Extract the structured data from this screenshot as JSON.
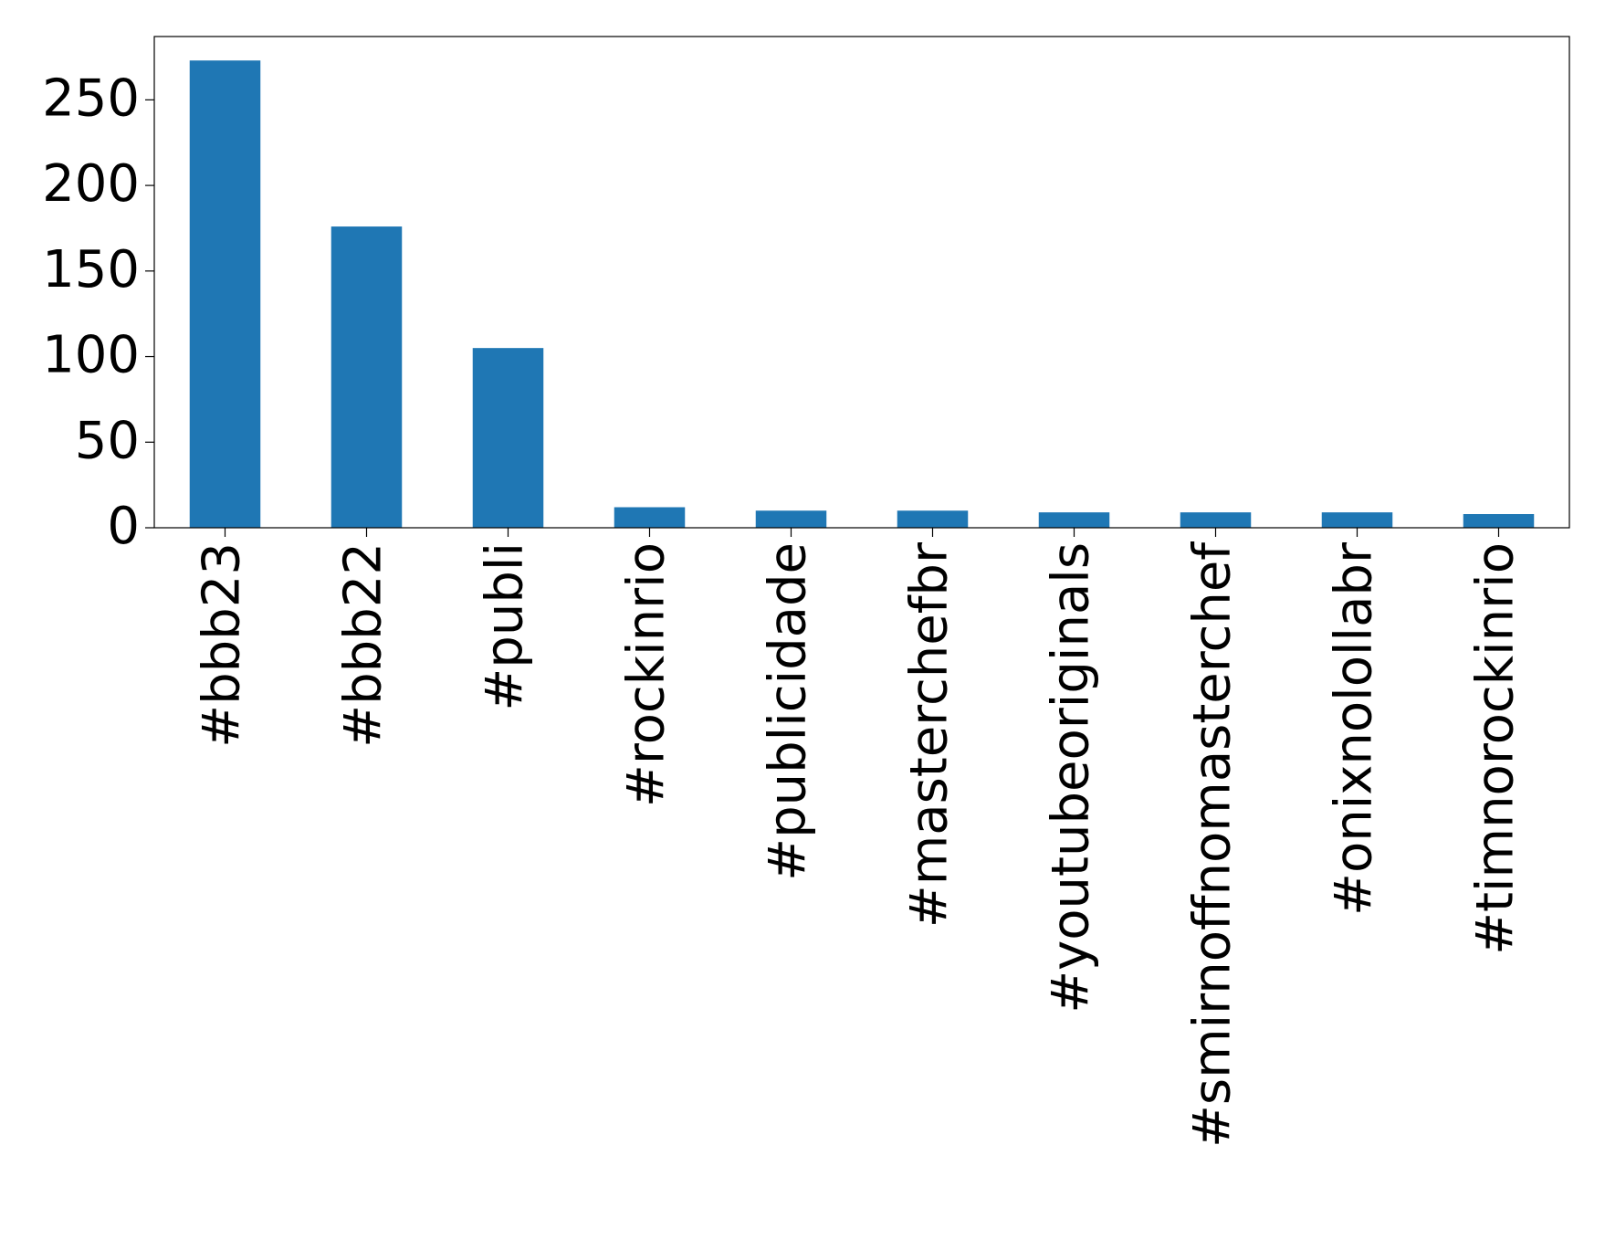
{
  "chart_data": {
    "type": "bar",
    "categories": [
      "#bbb23",
      "#bbb22",
      "#publi",
      "#rockinrio",
      "#publicidade",
      "#masterchefbr",
      "#youtubeoriginals",
      "#smirnoffnomasterchef",
      "#onixnolollabr",
      "#timnorockinrio"
    ],
    "values": [
      273,
      176,
      105,
      12,
      10,
      10,
      9,
      9,
      9,
      8
    ],
    "color": "#1f77b4",
    "ylim": [
      0,
      287
    ],
    "yticks": [
      0,
      50,
      100,
      150,
      200,
      250
    ],
    "grid": false
  }
}
